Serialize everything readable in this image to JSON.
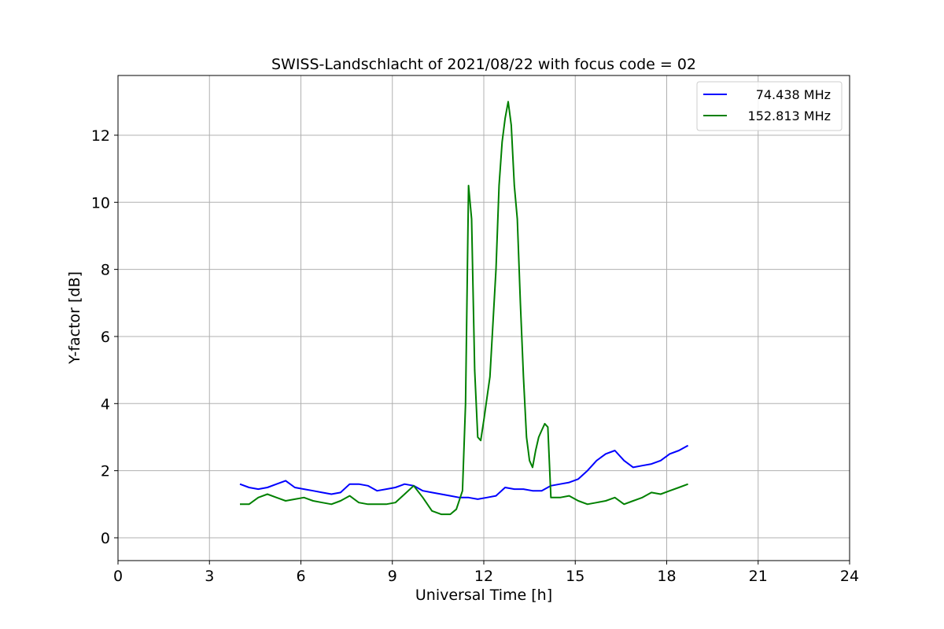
{
  "chart_data": {
    "type": "line",
    "title": "SWISS-Landschlacht of 2021/08/22 with focus code = 02",
    "xlabel": "Universal Time [h]",
    "ylabel": "Y-factor [dB]",
    "xlim": [
      0,
      24
    ],
    "ylim": [
      -0.68,
      13.78
    ],
    "xticks": [
      0,
      3,
      6,
      9,
      12,
      15,
      18,
      21,
      24
    ],
    "yticks": [
      0,
      2,
      4,
      6,
      8,
      10,
      12
    ],
    "grid": true,
    "legend_position": "top-right",
    "series": [
      {
        "name": "74.438 MHz",
        "color": "#0000ff",
        "x": [
          4.0,
          4.3,
          4.6,
          4.9,
          5.2,
          5.5,
          5.8,
          6.1,
          6.4,
          6.7,
          7.0,
          7.3,
          7.6,
          7.9,
          8.2,
          8.5,
          8.8,
          9.1,
          9.4,
          9.7,
          10.0,
          10.3,
          10.6,
          10.9,
          11.2,
          11.5,
          11.8,
          12.1,
          12.4,
          12.7,
          13.0,
          13.3,
          13.6,
          13.9,
          14.2,
          14.5,
          14.8,
          15.1,
          15.4,
          15.7,
          16.0,
          16.3,
          16.6,
          16.9,
          17.2,
          17.5,
          17.8,
          18.1,
          18.4,
          18.7
        ],
        "y": [
          1.6,
          1.5,
          1.45,
          1.5,
          1.6,
          1.7,
          1.5,
          1.45,
          1.4,
          1.35,
          1.3,
          1.35,
          1.6,
          1.6,
          1.55,
          1.4,
          1.45,
          1.5,
          1.6,
          1.55,
          1.4,
          1.35,
          1.3,
          1.25,
          1.2,
          1.2,
          1.15,
          1.2,
          1.25,
          1.5,
          1.45,
          1.45,
          1.4,
          1.4,
          1.55,
          1.6,
          1.65,
          1.75,
          2.0,
          2.3,
          2.5,
          2.6,
          2.3,
          2.1,
          2.15,
          2.2,
          2.3,
          2.5,
          2.6,
          2.75
        ]
      },
      {
        "name": "152.813 MHz",
        "color": "#008000",
        "x": [
          4.0,
          4.3,
          4.6,
          4.9,
          5.2,
          5.5,
          5.8,
          6.1,
          6.4,
          6.7,
          7.0,
          7.3,
          7.6,
          7.9,
          8.2,
          8.5,
          8.8,
          9.1,
          9.4,
          9.7,
          10.0,
          10.3,
          10.6,
          10.9,
          11.1,
          11.3,
          11.4,
          11.5,
          11.6,
          11.7,
          11.8,
          11.9,
          12.0,
          12.2,
          12.4,
          12.5,
          12.6,
          12.7,
          12.8,
          12.9,
          13.0,
          13.1,
          13.2,
          13.3,
          13.4,
          13.5,
          13.6,
          13.7,
          13.8,
          13.9,
          14.0,
          14.1,
          14.2,
          14.5,
          14.8,
          15.1,
          15.4,
          15.7,
          16.0,
          16.3,
          16.6,
          16.9,
          17.2,
          17.5,
          17.8,
          18.1,
          18.4,
          18.7
        ],
        "y": [
          1.0,
          1.0,
          1.2,
          1.3,
          1.2,
          1.1,
          1.15,
          1.2,
          1.1,
          1.05,
          1.0,
          1.1,
          1.25,
          1.05,
          1.0,
          1.0,
          1.0,
          1.05,
          1.3,
          1.55,
          1.2,
          0.8,
          0.7,
          0.7,
          0.85,
          1.4,
          4.0,
          10.5,
          9.5,
          5.0,
          3.0,
          2.9,
          3.5,
          4.8,
          8.0,
          10.5,
          11.8,
          12.5,
          13.0,
          12.3,
          10.5,
          9.5,
          7.0,
          4.8,
          3.0,
          2.3,
          2.1,
          2.6,
          3.0,
          3.2,
          3.4,
          3.3,
          1.2,
          1.2,
          1.25,
          1.1,
          1.0,
          1.05,
          1.1,
          1.2,
          1.0,
          1.1,
          1.2,
          1.35,
          1.3,
          1.4,
          1.5,
          1.6
        ]
      }
    ]
  }
}
